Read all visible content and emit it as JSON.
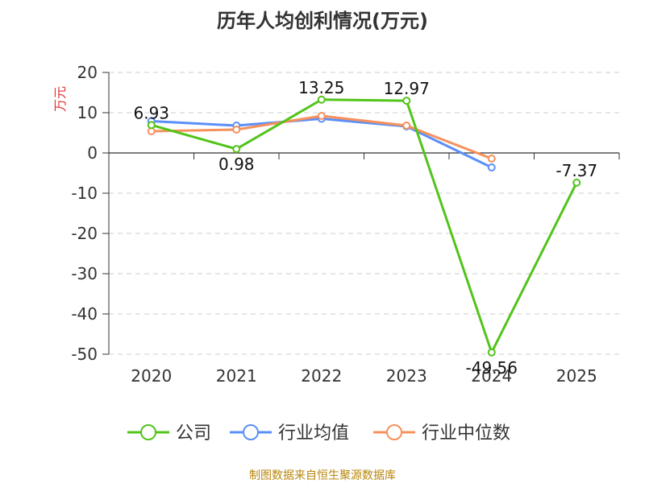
{
  "chart_data": {
    "type": "line",
    "title": "历年人均创利情况(万元)",
    "ylabel": "万元",
    "xlabel": "",
    "ylim": [
      -50,
      20
    ],
    "yticks": [
      20,
      10,
      0,
      -10,
      -20,
      -30,
      -40,
      -50
    ],
    "categories": [
      "2020",
      "2021",
      "2022",
      "2023",
      "2024",
      "2025"
    ],
    "series": [
      {
        "name": "公司",
        "color": "#52c41a",
        "values": [
          6.93,
          0.98,
          13.25,
          12.97,
          -49.56,
          -7.37
        ],
        "labels": [
          "6.93",
          "0.98",
          "13.25",
          "12.97",
          "-49.56",
          "-7.37"
        ]
      },
      {
        "name": "行业均值",
        "color": "#5b8ff9",
        "values": [
          7.9,
          6.8,
          8.5,
          6.6,
          -3.6,
          null
        ]
      },
      {
        "name": "行业中位数",
        "color": "#f6915c",
        "values": [
          5.4,
          5.8,
          9.2,
          6.8,
          -1.4,
          null
        ]
      }
    ],
    "grid": true,
    "legend_position": "bottom"
  },
  "source": "制图数据来自恒生聚源数据库"
}
